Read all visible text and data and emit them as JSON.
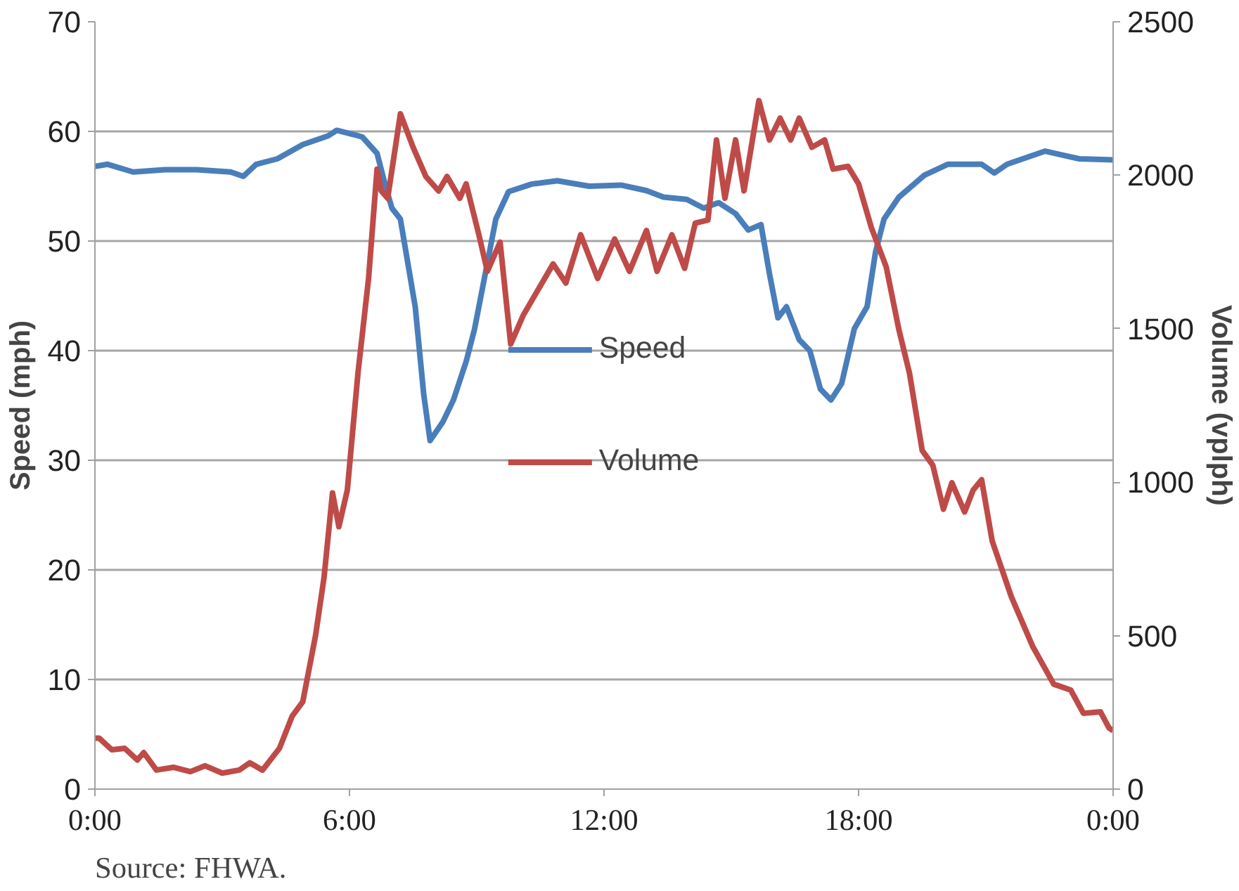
{
  "chart_data": {
    "type": "line",
    "xlim": [
      0,
      24
    ],
    "xticks": [
      {
        "value": 0,
        "label": "0:00"
      },
      {
        "value": 6,
        "label": "6:00"
      },
      {
        "value": 12,
        "label": "12:00"
      },
      {
        "value": 18,
        "label": "18:00"
      },
      {
        "value": 24,
        "label": "0:00"
      }
    ],
    "ylim": [
      0,
      70
    ],
    "yticks": [
      0,
      10,
      20,
      30,
      40,
      50,
      60,
      70
    ],
    "y2lim": [
      0,
      2500
    ],
    "y2ticks": [
      0,
      500,
      1000,
      1500,
      2000,
      2500
    ],
    "ylabel": "Speed (mph)",
    "y2label": "Volume (vplph)",
    "grid": "y",
    "legend": "center",
    "line_style": "solid",
    "marker": "none",
    "annotations": [
      "Source: FHWA."
    ],
    "series": [
      {
        "name": "Speed",
        "color": "#4a7ebb",
        "x": [
          0,
          0.3,
          0.9,
          1.65,
          2.4,
          3.2,
          3.5,
          3.8,
          4.3,
          4.9,
          5.5,
          5.7,
          6.3,
          6.65,
          6.85,
          7.0,
          7.2,
          7.55,
          7.75,
          7.9,
          8.2,
          8.45,
          8.75,
          8.95,
          9.2,
          9.45,
          9.75,
          10.3,
          10.9,
          11.65,
          12.4,
          13.0,
          13.4,
          13.95,
          14.35,
          14.7,
          15.1,
          15.4,
          15.7,
          15.9,
          16.1,
          16.3,
          16.6,
          16.85,
          17.1,
          17.35,
          17.6,
          17.9,
          18.2,
          18.4,
          18.6,
          18.95,
          19.55,
          20.1,
          20.9,
          21.2,
          21.5,
          22.4,
          23.2,
          24
        ],
        "values": [
          56.8,
          57,
          56.3,
          56.5,
          56.5,
          56.3,
          55.9,
          57,
          57.5,
          58.8,
          59.6,
          60.1,
          59.5,
          58,
          55,
          53,
          52,
          44,
          36,
          31.8,
          33.5,
          35.5,
          39,
          42,
          47,
          52,
          54.5,
          55.2,
          55.5,
          55,
          55.1,
          54.6,
          54,
          53.8,
          53,
          53.5,
          52.5,
          51,
          51.5,
          47,
          43,
          44,
          41,
          40,
          36.5,
          35.5,
          37,
          42,
          44,
          49,
          52,
          54,
          56,
          57,
          57,
          56.2,
          57,
          58.2,
          57.5,
          57.4
        ]
      },
      {
        "name": "Volume",
        "color": "#be4b48",
        "axis": "y2",
        "x": [
          0,
          0.1,
          0.4,
          0.7,
          1.0,
          1.15,
          1.45,
          1.85,
          2.25,
          2.6,
          3.0,
          3.4,
          3.65,
          3.95,
          4.35,
          4.65,
          4.9,
          5.2,
          5.4,
          5.6,
          5.75,
          5.95,
          6.2,
          6.45,
          6.65,
          6.75,
          6.9,
          7.2,
          7.5,
          7.8,
          8.1,
          8.3,
          8.6,
          8.75,
          9.05,
          9.25,
          9.55,
          9.8,
          10.1,
          10.5,
          10.8,
          11.1,
          11.45,
          11.85,
          12.25,
          12.6,
          13.0,
          13.25,
          13.6,
          13.9,
          14.15,
          14.45,
          14.65,
          14.85,
          15.1,
          15.3,
          15.65,
          15.9,
          16.15,
          16.4,
          16.6,
          16.9,
          17.2,
          17.4,
          17.75,
          18.0,
          18.3,
          18.65,
          18.95,
          19.2,
          19.5,
          19.75,
          20.0,
          20.2,
          20.5,
          20.7,
          20.9,
          21.15,
          21.6,
          22.1,
          22.6,
          23.0,
          23.3,
          23.7,
          23.9,
          24
        ],
        "values": [
          166,
          166,
          128,
          133,
          95,
          119,
          62,
          71,
          57,
          76,
          52,
          62,
          86,
          62,
          133,
          238,
          285,
          500,
          689,
          965,
          855,
          975,
          1355,
          1664,
          2020,
          1949,
          1925,
          2200,
          2091,
          1996,
          1949,
          1996,
          1925,
          1972,
          1806,
          1687,
          1782,
          1450,
          1545,
          1640,
          1711,
          1649,
          1806,
          1664,
          1792,
          1687,
          1820,
          1687,
          1806,
          1697,
          1844,
          1854,
          2115,
          1925,
          2115,
          1949,
          2243,
          2115,
          2186,
          2115,
          2186,
          2091,
          2115,
          2020,
          2029,
          1972,
          1830,
          1702,
          1497,
          1355,
          1103,
          1055,
          912,
          998,
          903,
          974,
          1008,
          808,
          627,
          466,
          342,
          323,
          247,
          252,
          200,
          190
        ]
      }
    ]
  }
}
